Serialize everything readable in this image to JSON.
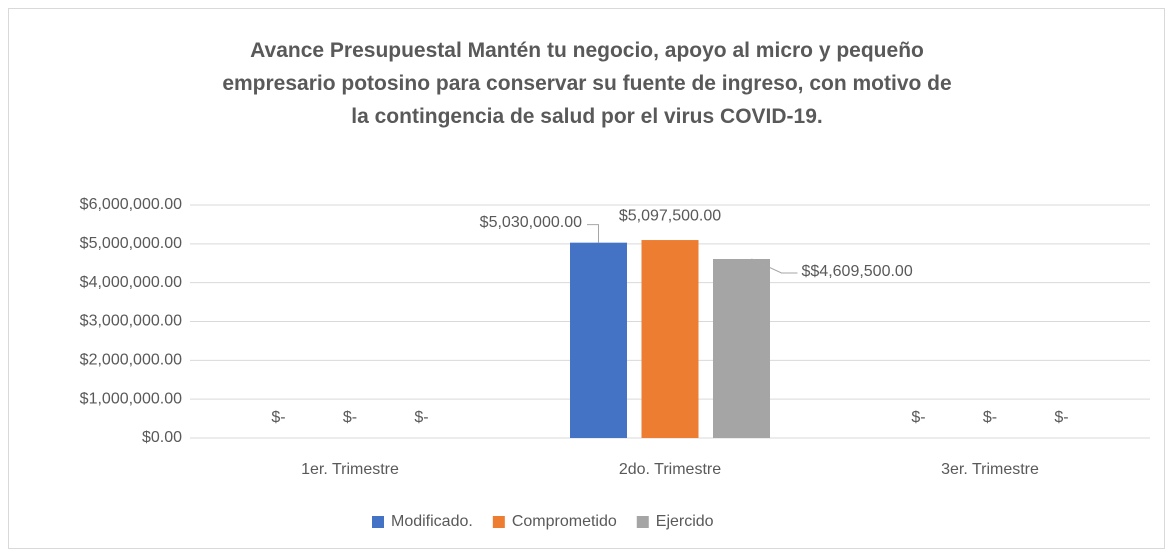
{
  "chart_data": {
    "type": "bar",
    "title": "Avance Presupuestal Mantén tu negocio, apoyo al micro y pequeño empresario potosino para conservar su fuente de ingreso, con motivo de la contingencia de salud por el virus COVID-19.",
    "categories": [
      "1er. Trimestre",
      "2do. Trimestre",
      "3er. Trimestre"
    ],
    "series": [
      {
        "name": "Modificado.",
        "color": "#4472c4",
        "values": [
          0,
          5030000,
          0
        ],
        "value_labels": [
          "$-",
          "$5,030,000.00",
          "$-"
        ]
      },
      {
        "name": "Comprometido",
        "color": "#ed7d31",
        "values": [
          0,
          5097500,
          0
        ],
        "value_labels": [
          "$-",
          "$5,097,500.00",
          "$-"
        ]
      },
      {
        "name": "Ejercido",
        "color": "#a5a5a5",
        "values": [
          0,
          4609500,
          0
        ],
        "value_labels": [
          "$-",
          "$$4,609,500.00",
          "$-"
        ]
      }
    ],
    "ylim": [
      0,
      6000000
    ],
    "yticks": [
      {
        "value": 0,
        "label": "$0.00"
      },
      {
        "value": 1000000,
        "label": "$1,000,000.00"
      },
      {
        "value": 2000000,
        "label": "$2,000,000.00"
      },
      {
        "value": 3000000,
        "label": "$3,000,000.00"
      },
      {
        "value": 4000000,
        "label": "$4,000,000.00"
      },
      {
        "value": 5000000,
        "label": "$5,000,000.00"
      },
      {
        "value": 6000000,
        "label": "$6,000,000.00"
      }
    ],
    "grid": true,
    "legend": "bottom"
  }
}
